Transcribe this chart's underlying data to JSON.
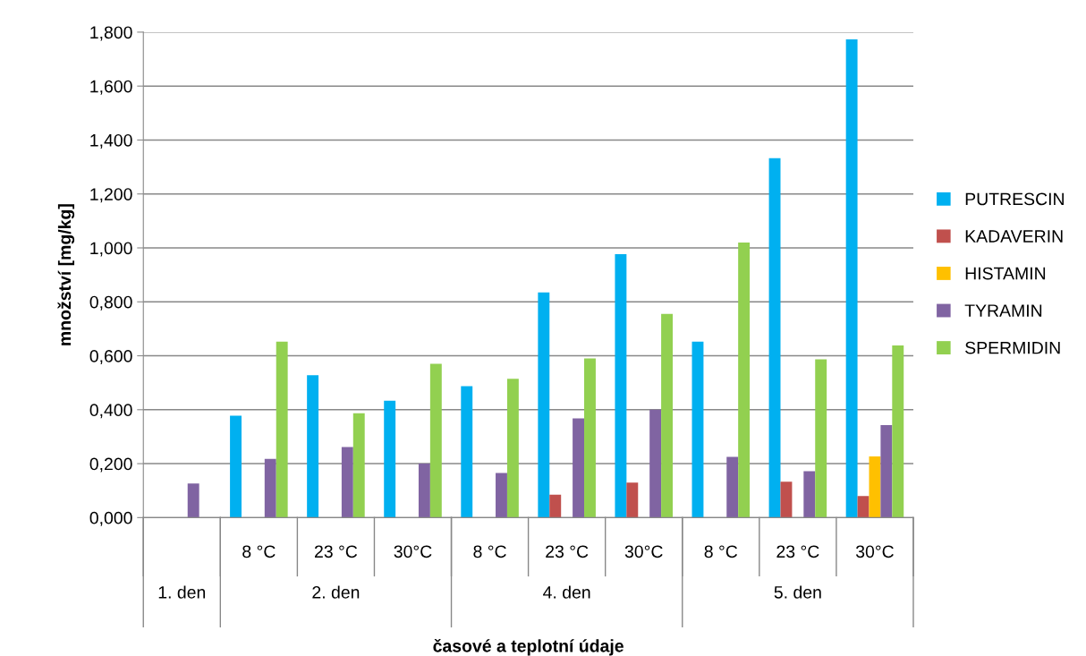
{
  "chart_data": {
    "type": "bar",
    "xlabel": "časové a teplotní údaje",
    "ylabel": "množství [mg/kg]",
    "categories": [
      null,
      "8 °C",
      "23 °C",
      "30°C",
      "8 °C",
      "23 °C",
      "30°C",
      "8 °C",
      "23 °C",
      "30°C"
    ],
    "annotations": [
      "1. den",
      "2. den",
      "4. den",
      "5. den"
    ],
    "series": [
      {
        "name": "PUTRESCIN",
        "color": "#00b0f0",
        "values": [
          null,
          0.378,
          0.528,
          0.433,
          0.487,
          0.835,
          0.977,
          0.652,
          1.333,
          1.773
        ]
      },
      {
        "name": "KADAVERIN",
        "color": "#c0504d",
        "values": [
          null,
          null,
          null,
          null,
          null,
          0.085,
          0.13,
          null,
          0.133,
          0.08
        ]
      },
      {
        "name": "HISTAMIN",
        "color": "#ffc000",
        "values": [
          null,
          null,
          null,
          null,
          null,
          null,
          null,
          null,
          null,
          0.227
        ]
      },
      {
        "name": "TYRAMIN",
        "color": "#8064a2",
        "values": [
          0.126,
          0.218,
          0.262,
          0.2,
          0.165,
          0.368,
          0.4,
          0.225,
          0.172,
          0.343
        ]
      },
      {
        "name": "SPERMIDIN",
        "color": "#92d050",
        "values": [
          null,
          0.652,
          0.387,
          0.57,
          0.515,
          0.59,
          0.755,
          1.02,
          0.587,
          0.638
        ]
      }
    ],
    "ylim": [
      0,
      1.8
    ],
    "yticks": [
      {
        "value": 0,
        "label": "0,000"
      },
      {
        "value": 0.2,
        "label": "0,200"
      },
      {
        "value": 0.4,
        "label": "0,400"
      },
      {
        "value": 0.6,
        "label": "0,600"
      },
      {
        "value": 0.8,
        "label": "0,800"
      },
      {
        "value": 1.0,
        "label": "1,000"
      },
      {
        "value": 1.2,
        "label": "1,200"
      },
      {
        "value": 1.4,
        "label": "1,400"
      },
      {
        "value": 1.6,
        "label": "1,600"
      },
      {
        "value": 1.8,
        "label": "1,800"
      }
    ],
    "grid": "y",
    "legend": "right"
  }
}
